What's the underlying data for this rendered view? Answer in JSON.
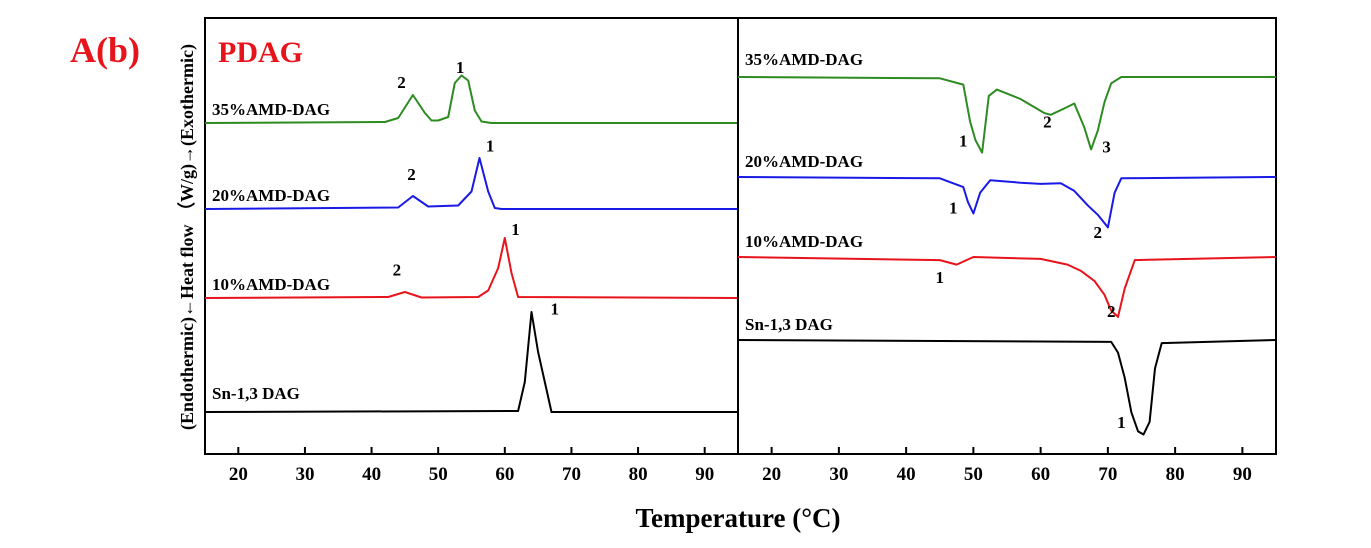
{
  "figure": {
    "panel_label": "A(b)",
    "title": "PDAG",
    "xlabel": "Temperature (°C)",
    "ylabel": "(Endothermic)←Heat flow （W/g)→(Exothermic)",
    "accent_color": "#e8141c"
  },
  "chart_data": [
    {
      "type": "line",
      "panel": "cooling",
      "xlim": [
        15,
        95
      ],
      "xticks": [
        20,
        30,
        40,
        50,
        60,
        70,
        80,
        90
      ],
      "grid": false,
      "series": [
        {
          "name": "35%AMD-DAG",
          "color": "#2e8b22",
          "offset": 3,
          "x": [
            15,
            42,
            44,
            46.2,
            48,
            49,
            50,
            51.5,
            52.5,
            53.5,
            54.5,
            55.5,
            56.5,
            58,
            95
          ],
          "y": [
            0.0,
            0.02,
            0.1,
            0.56,
            0.2,
            0.05,
            0.05,
            0.12,
            0.8,
            0.95,
            0.85,
            0.25,
            0.03,
            0.0,
            0.0
          ],
          "peaks": [
            {
              "label": "1",
              "x": 53.3,
              "y": 1.0
            },
            {
              "label": "2",
              "x": 44.5,
              "y": 0.7
            }
          ]
        },
        {
          "name": "20%AMD-DAG",
          "color": "#1a1ae6",
          "offset": 2,
          "x": [
            15,
            44,
            46.2,
            48.5,
            53,
            55,
            56.2,
            57.5,
            58.5,
            59.5,
            95
          ],
          "y": [
            0.0,
            0.03,
            0.26,
            0.05,
            0.07,
            0.35,
            1.02,
            0.35,
            0.02,
            0.0,
            0.0
          ],
          "peaks": [
            {
              "label": "1",
              "x": 57.8,
              "y": 1.15
            },
            {
              "label": "2",
              "x": 46.0,
              "y": 0.58
            }
          ]
        },
        {
          "name": "10%AMD-DAG",
          "color": "#e8141c",
          "offset": 1,
          "x": [
            15,
            42.5,
            45,
            47.5,
            56,
            57.5,
            59,
            60,
            61,
            62,
            95
          ],
          "y": [
            0.0,
            0.02,
            0.12,
            0.01,
            0.02,
            0.15,
            0.6,
            1.2,
            0.5,
            0.02,
            0.0
          ],
          "peaks": [
            {
              "label": "1",
              "x": 61.6,
              "y": 1.26
            },
            {
              "label": "2",
              "x": 43.8,
              "y": 0.45
            }
          ]
        },
        {
          "name": "Sn-1,3 DAG",
          "color": "#000000",
          "offset": 0,
          "x": [
            15,
            62,
            63,
            64,
            65,
            66,
            67,
            95
          ],
          "y": [
            0.0,
            0.02,
            0.6,
            2.0,
            1.2,
            0.6,
            0.0,
            0.0
          ],
          "peaks": [
            {
              "label": "1",
              "x": 67.5,
              "y": 1.95
            }
          ]
        }
      ]
    },
    {
      "type": "line",
      "panel": "heating",
      "xlim": [
        15,
        95
      ],
      "xticks": [
        20,
        30,
        40,
        50,
        60,
        70,
        80,
        90
      ],
      "grid": false,
      "series": [
        {
          "name": "35%AMD-DAG",
          "color": "#2e8b22",
          "offset": 3,
          "x": [
            15,
            45,
            48.5,
            49.5,
            50.3,
            51.3,
            52.3,
            53.5,
            57,
            60.5,
            61.5,
            62.5,
            63.5,
            65,
            66.5,
            67.5,
            68.5,
            69.5,
            70.5,
            72,
            95
          ],
          "y": [
            0.0,
            -0.02,
            -0.12,
            -0.7,
            -1.0,
            -1.2,
            -0.3,
            -0.2,
            -0.35,
            -0.57,
            -0.6,
            -0.55,
            -0.5,
            -0.42,
            -0.8,
            -1.15,
            -0.85,
            -0.4,
            -0.1,
            0.0,
            0.0
          ],
          "peaks": [
            {
              "label": "1",
              "x": 48.5,
              "y": -1.1
            },
            {
              "label": "2",
              "x": 61.0,
              "y": -0.8
            },
            {
              "label": "3",
              "x": 69.8,
              "y": -1.2
            }
          ]
        },
        {
          "name": "20%AMD-DAG",
          "color": "#1a1ae6",
          "offset": 2,
          "x": [
            15,
            45,
            48.5,
            49.2,
            50,
            51,
            52.5,
            57,
            60,
            63,
            65,
            67,
            68.5,
            70,
            71,
            72,
            95
          ],
          "y": [
            0.0,
            -0.02,
            -0.16,
            -0.4,
            -0.58,
            -0.25,
            -0.05,
            -0.09,
            -0.11,
            -0.1,
            -0.22,
            -0.45,
            -0.6,
            -0.8,
            -0.25,
            -0.02,
            0.0
          ],
          "peaks": [
            {
              "label": "1",
              "x": 47.0,
              "y": -0.58
            },
            {
              "label": "2",
              "x": 68.5,
              "y": -0.97
            }
          ]
        },
        {
          "name": "10%AMD-DAG",
          "color": "#e8141c",
          "offset": 1,
          "x": [
            15,
            45,
            47.5,
            50,
            60,
            64,
            66,
            68,
            69.5,
            70.5,
            71.5,
            72.5,
            74,
            95
          ],
          "y": [
            0.0,
            -0.05,
            -0.12,
            0.0,
            -0.03,
            -0.12,
            -0.22,
            -0.38,
            -0.6,
            -0.85,
            -0.95,
            -0.5,
            -0.05,
            0.0
          ],
          "peaks": [
            {
              "label": "1",
              "x": 45.0,
              "y": -0.41
            },
            {
              "label": "2",
              "x": 70.5,
              "y": -0.95
            }
          ]
        },
        {
          "name": "Sn-1,3 DAG",
          "color": "#000000",
          "offset": 0,
          "x": [
            15,
            70.5,
            71.5,
            72.5,
            73.5,
            74.5,
            75.3,
            76.2,
            77,
            78,
            95
          ],
          "y": [
            0.0,
            -0.03,
            -0.2,
            -0.6,
            -1.15,
            -1.45,
            -1.5,
            -1.3,
            -0.45,
            -0.05,
            0.0
          ],
          "peaks": [
            {
              "label": "1",
              "x": 72.0,
              "y": -1.4
            }
          ]
        }
      ]
    }
  ]
}
